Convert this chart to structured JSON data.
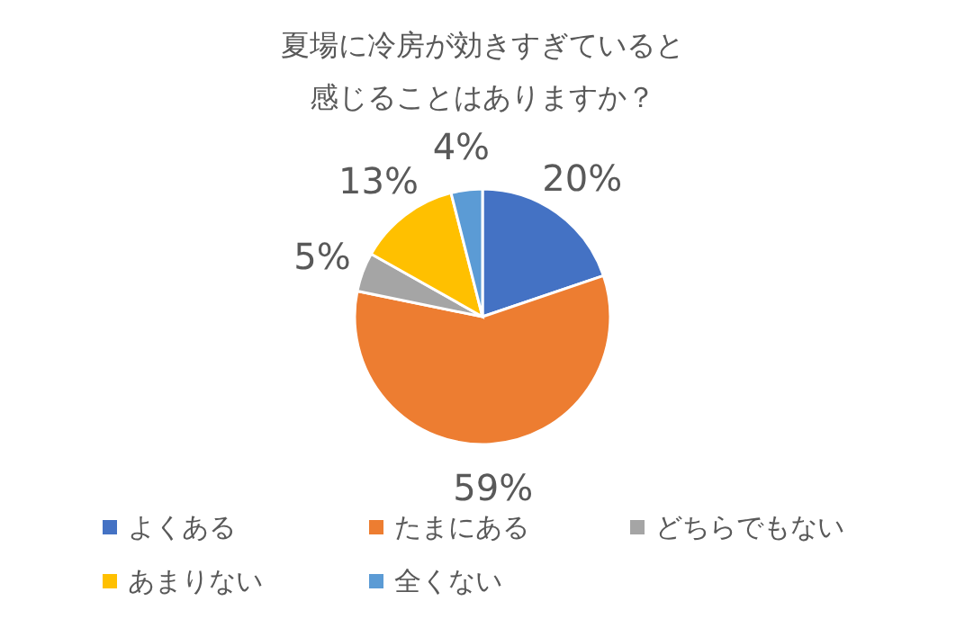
{
  "chart_data": {
    "type": "pie",
    "title": "夏場に冷房が効きすぎていると感じることはありますか？",
    "categories": [
      "よくある",
      "たまにある",
      "どちらでもない",
      "あまりない",
      "全くない"
    ],
    "values": [
      20,
      59,
      5,
      13,
      4
    ],
    "colors": [
      "#4472c4",
      "#ed7d31",
      "#a5a5a5",
      "#ffc000",
      "#5b9bd5"
    ],
    "value_labels": [
      "20%",
      "59%",
      "5%",
      "13%",
      "4%"
    ],
    "legend": "bottom"
  }
}
